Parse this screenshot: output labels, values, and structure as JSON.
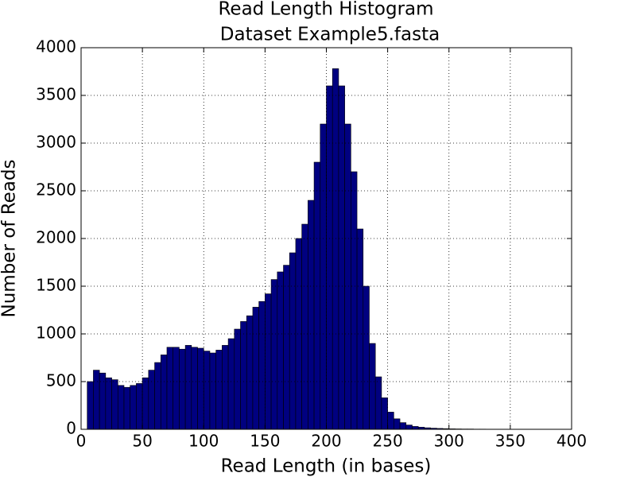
{
  "chart_data": {
    "type": "histogram",
    "title": "Read Length Histogram",
    "subtitle": "Dataset Example5.fasta",
    "x_label": "Read Length (in bases)",
    "y_label": "Number of Reads",
    "bins": [
      5,
      10,
      15,
      20,
      25,
      30,
      35,
      40,
      45,
      50,
      55,
      60,
      65,
      70,
      75,
      80,
      85,
      90,
      95,
      100,
      105,
      110,
      115,
      120,
      125,
      130,
      135,
      140,
      145,
      150,
      155,
      160,
      165,
      170,
      175,
      180,
      185,
      190,
      195,
      200,
      205,
      210,
      215,
      220,
      225,
      230,
      235,
      240,
      245,
      250,
      255,
      260,
      265,
      270,
      275,
      280,
      285,
      290,
      295,
      300,
      305,
      310,
      315,
      320,
      325,
      330,
      335,
      340,
      345,
      350,
      355
    ],
    "values": [
      500,
      620,
      590,
      540,
      520,
      460,
      440,
      460,
      480,
      540,
      620,
      700,
      780,
      860,
      860,
      840,
      880,
      860,
      850,
      820,
      800,
      830,
      880,
      950,
      1050,
      1130,
      1190,
      1280,
      1340,
      1420,
      1570,
      1650,
      1720,
      1850,
      2000,
      2150,
      2400,
      2800,
      3200,
      3600,
      3780,
      3600,
      3200,
      2700,
      2100,
      1500,
      900,
      550,
      330,
      180,
      110,
      70,
      45,
      30,
      22,
      16,
      12,
      9,
      7,
      5,
      4,
      3,
      3,
      2,
      2,
      1,
      1,
      1,
      1,
      1
    ],
    "color": "#000080",
    "edge_color": "#000000",
    "xlim": [
      0,
      400
    ],
    "xticks": [
      0,
      50,
      100,
      150,
      200,
      250,
      300,
      350,
      400
    ],
    "ylim": [
      0,
      4000
    ],
    "yticks": [
      0,
      500,
      1000,
      1500,
      2000,
      2500,
      3000,
      3500,
      4000
    ],
    "grid": true
  }
}
